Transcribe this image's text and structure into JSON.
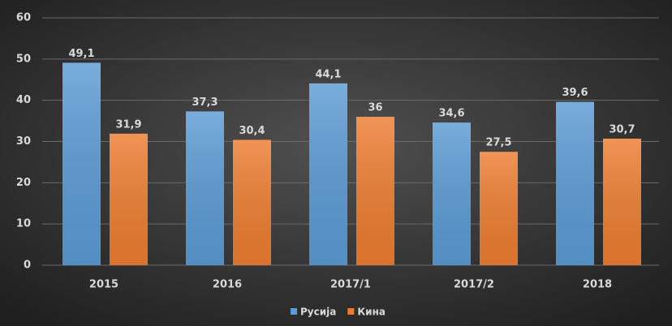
{
  "chart_data": {
    "type": "bar",
    "categories": [
      "2015",
      "2016",
      "2017/1",
      "2017/2",
      "2018"
    ],
    "series": [
      {
        "name": "Русија",
        "color": "#5b9bd5",
        "values": [
          49.1,
          37.3,
          44.1,
          34.6,
          39.6
        ],
        "value_labels": [
          "49,1",
          "37,3",
          "44,1",
          "34,6",
          "39,6"
        ]
      },
      {
        "name": "Кина",
        "color": "#ed7d31",
        "values": [
          31.9,
          30.4,
          36,
          27.5,
          30.7
        ],
        "value_labels": [
          "31,9",
          "30,4",
          "36",
          "27,5",
          "30,7"
        ]
      }
    ],
    "ylim": [
      0,
      60
    ],
    "yticks": [
      0,
      10,
      20,
      30,
      40,
      50,
      60
    ],
    "grid": true,
    "legend": "bottom"
  }
}
